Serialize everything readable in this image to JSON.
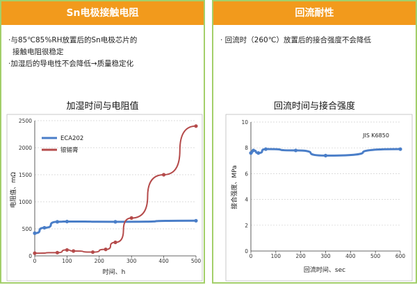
{
  "left_panel": {
    "header": "Sn电极接触电阻",
    "bullets": [
      "·与85℃85%RH放置后的Sn电极芯片的",
      "  接触电阻很稳定",
      "·加湿后的导电性不会降低→质量稳定化"
    ]
  },
  "right_panel": {
    "header": "回流耐性",
    "bullets": [
      "· 回流时（260℃）放置后的接合强度不会降低"
    ]
  },
  "colors": {
    "banner": "#f29a1c",
    "border": "#a3cf6a",
    "blue": "#4a7ec8",
    "red": "#b54b4b"
  },
  "chart_data": [
    {
      "type": "line",
      "title": "加湿时间与电阻值",
      "xlabel": "时间、h",
      "ylabel": "电阻值、mΩ",
      "xlim": [
        0,
        500
      ],
      "ylim": [
        0,
        2500
      ],
      "xticks": [
        0,
        100,
        200,
        300,
        400,
        500
      ],
      "yticks": [
        0,
        500,
        1000,
        1500,
        2000,
        2500
      ],
      "grid": true,
      "legend": "top-left",
      "series": [
        {
          "name": "ECA202",
          "color": "#4a7ec8",
          "x": [
            0,
            30,
            70,
            100,
            250,
            500
          ],
          "y": [
            420,
            520,
            630,
            635,
            630,
            650
          ]
        },
        {
          "name": "银锡膏",
          "color": "#b54b4b",
          "x": [
            0,
            70,
            100,
            120,
            180,
            220,
            250,
            300,
            400,
            500
          ],
          "y": [
            50,
            60,
            110,
            90,
            70,
            120,
            250,
            700,
            1500,
            2400
          ]
        }
      ]
    },
    {
      "type": "line",
      "title": "回流时间与接合强度",
      "xlabel": "回流时间、sec",
      "ylabel": "接合强度、MPa",
      "annotation": "JIS K6850",
      "xlim": [
        0,
        600
      ],
      "ylim": [
        0,
        10
      ],
      "xticks": [
        0,
        100,
        200,
        300,
        400,
        500,
        600
      ],
      "yticks": [
        0,
        2,
        4,
        6,
        8,
        10
      ],
      "grid": true,
      "series": [
        {
          "name": "",
          "color": "#4a7ec8",
          "x": [
            0,
            10,
            30,
            60,
            180,
            300,
            600
          ],
          "y": [
            7.6,
            7.8,
            7.6,
            7.9,
            7.8,
            7.4,
            7.9
          ]
        }
      ]
    }
  ]
}
